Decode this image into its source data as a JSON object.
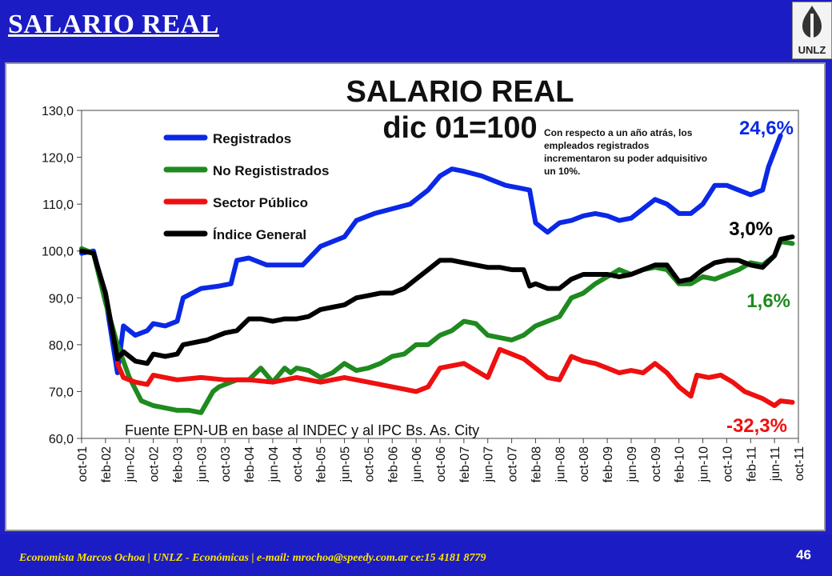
{
  "slide": {
    "title": "SALARIO REAL",
    "logo_text": "UNLZ",
    "footer": "Economista  Marcos Ochoa | UNLZ - Económicas | e-mail: mrochoa@speedy.com.ar  ce:15 4181 8779",
    "page_number": "46"
  },
  "chart_data": {
    "type": "line",
    "title": "SALARIO REAL",
    "subtitle": "dic 01=100",
    "source_note": "Fuente EPN-UB en base al INDEC y al IPC Bs. As. City",
    "annotation": "Con respecto a un año atrás, los empleados registrados incrementaron su poder adquisitivo un 10%.",
    "ylim": [
      60,
      130
    ],
    "yticks": [
      "60,0",
      "70,0",
      "80,0",
      "90,0",
      "100,0",
      "110,0",
      "120,0",
      "130,0"
    ],
    "x_range": [
      "oct-01",
      "oct-11"
    ],
    "xticks": [
      "oct-01",
      "feb-02",
      "jun-02",
      "oct-02",
      "feb-03",
      "jun-03",
      "oct-03",
      "feb-04",
      "jun-04",
      "oct-04",
      "feb-05",
      "jun-05",
      "oct-05",
      "feb-06",
      "jun-06",
      "oct-06",
      "feb-07",
      "jun-07",
      "oct-07",
      "feb-08",
      "jun-08",
      "oct-08",
      "feb-09",
      "jun-09",
      "oct-09",
      "feb-10",
      "jun-10",
      "oct-10",
      "feb-11",
      "jun-11",
      "oct-11"
    ],
    "series": [
      {
        "name": "Registrados",
        "color": "#0a28e6",
        "end_label": "24,6%",
        "points": [
          [
            "oct-01",
            99.5
          ],
          [
            "dic-01",
            100
          ],
          [
            "feb-02",
            90
          ],
          [
            "abr-02",
            74
          ],
          [
            "may-02",
            84
          ],
          [
            "jul-02",
            82
          ],
          [
            "sep-02",
            83
          ],
          [
            "oct-02",
            84.5
          ],
          [
            "dic-02",
            84
          ],
          [
            "feb-03",
            85
          ],
          [
            "mar-03",
            90
          ],
          [
            "jun-03",
            92
          ],
          [
            "sep-03",
            92.5
          ],
          [
            "nov-03",
            93
          ],
          [
            "dic-03",
            98
          ],
          [
            "feb-04",
            98.5
          ],
          [
            "may-04",
            97
          ],
          [
            "ago-04",
            97
          ],
          [
            "nov-04",
            97
          ],
          [
            "feb-05",
            101
          ],
          [
            "jun-05",
            103
          ],
          [
            "ago-05",
            106.5
          ],
          [
            "nov-05",
            108
          ],
          [
            "feb-06",
            109
          ],
          [
            "may-06",
            110
          ],
          [
            "ago-06",
            113
          ],
          [
            "oct-06",
            116
          ],
          [
            "dic-06",
            117.5
          ],
          [
            "feb-07",
            117
          ],
          [
            "may-07",
            116
          ],
          [
            "jul-07",
            115
          ],
          [
            "sep-07",
            114
          ],
          [
            "nov-07",
            113.5
          ],
          [
            "ene-08",
            113
          ],
          [
            "feb-08",
            106
          ],
          [
            "abr-08",
            104
          ],
          [
            "jun-08",
            106
          ],
          [
            "ago-08",
            106.5
          ],
          [
            "oct-08",
            107.5
          ],
          [
            "dic-08",
            108
          ],
          [
            "feb-09",
            107.5
          ],
          [
            "abr-09",
            106.5
          ],
          [
            "jun-09",
            107
          ],
          [
            "ago-09",
            109
          ],
          [
            "oct-09",
            111
          ],
          [
            "dic-09",
            110
          ],
          [
            "feb-10",
            108
          ],
          [
            "abr-10",
            108
          ],
          [
            "jun-10",
            110
          ],
          [
            "ago-10",
            114
          ],
          [
            "oct-10",
            114
          ],
          [
            "dic-10",
            113
          ],
          [
            "feb-11",
            112
          ],
          [
            "abr-11",
            113
          ],
          [
            "may-11",
            118
          ],
          [
            "jul-11",
            124.6
          ]
        ]
      },
      {
        "name": "No Regististrados",
        "color": "#1f8a1f",
        "end_label": "1,6%",
        "points": [
          [
            "oct-01",
            100.5
          ],
          [
            "dic-01",
            99.5
          ],
          [
            "feb-02",
            89
          ],
          [
            "abr-02",
            80
          ],
          [
            "jun-02",
            73
          ],
          [
            "ago-02",
            68
          ],
          [
            "oct-02",
            67
          ],
          [
            "dic-02",
            66.5
          ],
          [
            "feb-03",
            66
          ],
          [
            "abr-03",
            66
          ],
          [
            "jun-03",
            65.5
          ],
          [
            "ago-03",
            70
          ],
          [
            "sep-03",
            71
          ],
          [
            "oct-03",
            71.5
          ],
          [
            "dic-03",
            72.5
          ],
          [
            "feb-04",
            72.5
          ],
          [
            "abr-04",
            75
          ],
          [
            "jun-04",
            72
          ],
          [
            "ago-04",
            75
          ],
          [
            "sep-04",
            74
          ],
          [
            "oct-04",
            75
          ],
          [
            "dic-04",
            74.5
          ],
          [
            "feb-05",
            73
          ],
          [
            "abr-05",
            74
          ],
          [
            "jun-05",
            76
          ],
          [
            "ago-05",
            74.5
          ],
          [
            "oct-05",
            75
          ],
          [
            "dic-05",
            76
          ],
          [
            "feb-06",
            77.5
          ],
          [
            "abr-06",
            78
          ],
          [
            "jun-06",
            80
          ],
          [
            "ago-06",
            80
          ],
          [
            "oct-06",
            82
          ],
          [
            "dic-06",
            83
          ],
          [
            "feb-07",
            85
          ],
          [
            "abr-07",
            84.5
          ],
          [
            "jun-07",
            82
          ],
          [
            "ago-07",
            81.5
          ],
          [
            "oct-07",
            81
          ],
          [
            "dic-07",
            82
          ],
          [
            "feb-08",
            84
          ],
          [
            "abr-08",
            85
          ],
          [
            "jun-08",
            86
          ],
          [
            "ago-08",
            90
          ],
          [
            "oct-08",
            91
          ],
          [
            "dic-08",
            93
          ],
          [
            "feb-09",
            94.5
          ],
          [
            "abr-09",
            96
          ],
          [
            "jun-09",
            95
          ],
          [
            "ago-09",
            96
          ],
          [
            "oct-09",
            96.5
          ],
          [
            "dic-09",
            96
          ],
          [
            "feb-10",
            93
          ],
          [
            "abr-10",
            93
          ],
          [
            "jun-10",
            94.5
          ],
          [
            "ago-10",
            94
          ],
          [
            "oct-10",
            95
          ],
          [
            "dic-10",
            96
          ],
          [
            "feb-11",
            97.5
          ],
          [
            "abr-11",
            97
          ],
          [
            "jun-11",
            99
          ],
          [
            "jul-11",
            102
          ],
          [
            "sep-11",
            101.6
          ]
        ]
      },
      {
        "name": "Sector  Público",
        "color": "#ee1010",
        "end_label": "-32,3%",
        "points": [
          [
            "abr-02",
            76
          ],
          [
            "may-02",
            73
          ],
          [
            "jul-02",
            72
          ],
          [
            "sep-02",
            71.5
          ],
          [
            "oct-02",
            73.5
          ],
          [
            "dic-02",
            73
          ],
          [
            "feb-03",
            72.5
          ],
          [
            "jun-03",
            73
          ],
          [
            "oct-03",
            72.5
          ],
          [
            "feb-04",
            72.5
          ],
          [
            "jun-04",
            72
          ],
          [
            "oct-04",
            73
          ],
          [
            "feb-05",
            72
          ],
          [
            "jun-05",
            73
          ],
          [
            "oct-05",
            72
          ],
          [
            "feb-06",
            71
          ],
          [
            "jun-06",
            70
          ],
          [
            "ago-06",
            71
          ],
          [
            "oct-06",
            75
          ],
          [
            "dic-06",
            75.5
          ],
          [
            "feb-07",
            76
          ],
          [
            "jun-07",
            73
          ],
          [
            "ago-07",
            79
          ],
          [
            "oct-07",
            78
          ],
          [
            "dic-07",
            77
          ],
          [
            "feb-08",
            75
          ],
          [
            "abr-08",
            73
          ],
          [
            "jun-08",
            72.5
          ],
          [
            "ago-08",
            77.5
          ],
          [
            "oct-08",
            76.5
          ],
          [
            "dic-08",
            76
          ],
          [
            "feb-09",
            75
          ],
          [
            "abr-09",
            74
          ],
          [
            "jun-09",
            74.5
          ],
          [
            "ago-09",
            74
          ],
          [
            "oct-09",
            76
          ],
          [
            "dic-09",
            74
          ],
          [
            "feb-10",
            71
          ],
          [
            "abr-10",
            69
          ],
          [
            "may-10",
            73.5
          ],
          [
            "jul-10",
            73
          ],
          [
            "sep-10",
            73.5
          ],
          [
            "nov-10",
            72
          ],
          [
            "ene-11",
            70
          ],
          [
            "abr-11",
            68.5
          ],
          [
            "jun-11",
            67
          ],
          [
            "jul-11",
            68
          ],
          [
            "sep-11",
            67.7
          ]
        ]
      },
      {
        "name": "Índice General",
        "color": "#000000",
        "end_label": "3,0%",
        "points": [
          [
            "oct-01",
            100
          ],
          [
            "dic-01",
            99.5
          ],
          [
            "feb-02",
            91
          ],
          [
            "abr-02",
            77
          ],
          [
            "may-02",
            78.5
          ],
          [
            "jul-02",
            76.5
          ],
          [
            "sep-02",
            76
          ],
          [
            "oct-02",
            78
          ],
          [
            "dic-02",
            77.5
          ],
          [
            "feb-03",
            78
          ],
          [
            "mar-03",
            80
          ],
          [
            "may-03",
            80.5
          ],
          [
            "jul-03",
            81
          ],
          [
            "sep-03",
            82
          ],
          [
            "oct-03",
            82.5
          ],
          [
            "dic-03",
            83
          ],
          [
            "feb-04",
            85.5
          ],
          [
            "abr-04",
            85.5
          ],
          [
            "jun-04",
            85
          ],
          [
            "ago-04",
            85.5
          ],
          [
            "oct-04",
            85.5
          ],
          [
            "dic-04",
            86
          ],
          [
            "feb-05",
            87.5
          ],
          [
            "abr-05",
            88
          ],
          [
            "jun-05",
            88.5
          ],
          [
            "ago-05",
            90
          ],
          [
            "oct-05",
            90.5
          ],
          [
            "dic-05",
            91
          ],
          [
            "feb-06",
            91
          ],
          [
            "abr-06",
            92
          ],
          [
            "jun-06",
            94
          ],
          [
            "ago-06",
            96
          ],
          [
            "oct-06",
            98
          ],
          [
            "dic-06",
            98
          ],
          [
            "feb-07",
            97.5
          ],
          [
            "abr-07",
            97
          ],
          [
            "jun-07",
            96.5
          ],
          [
            "ago-07",
            96.5
          ],
          [
            "oct-07",
            96
          ],
          [
            "dic-07",
            96
          ],
          [
            "ene-08",
            92.5
          ],
          [
            "feb-08",
            93
          ],
          [
            "abr-08",
            92
          ],
          [
            "jun-08",
            92
          ],
          [
            "ago-08",
            94
          ],
          [
            "oct-08",
            95
          ],
          [
            "dic-08",
            95
          ],
          [
            "feb-09",
            95
          ],
          [
            "abr-09",
            94.5
          ],
          [
            "jun-09",
            95
          ],
          [
            "ago-09",
            96
          ],
          [
            "oct-09",
            97
          ],
          [
            "dic-09",
            97
          ],
          [
            "feb-10",
            93.5
          ],
          [
            "abr-10",
            94
          ],
          [
            "jun-10",
            96
          ],
          [
            "ago-10",
            97.5
          ],
          [
            "oct-10",
            98
          ],
          [
            "dic-10",
            98
          ],
          [
            "feb-11",
            97
          ],
          [
            "abr-11",
            96.5
          ],
          [
            "jun-11",
            99
          ],
          [
            "jul-11",
            102.5
          ],
          [
            "sep-11",
            103
          ]
        ]
      }
    ],
    "legend_placement": "top-left",
    "grid": false
  }
}
